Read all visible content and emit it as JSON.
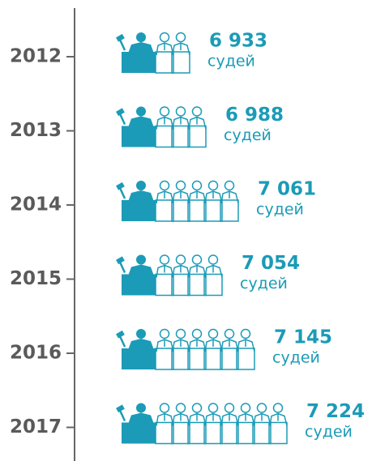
{
  "chart_data": {
    "type": "pictogram",
    "categories": [
      "2012",
      "2013",
      "2014",
      "2015",
      "2016",
      "2017"
    ],
    "values": [
      6933,
      6988,
      7061,
      7054,
      7145,
      7224
    ],
    "value_labels": [
      "6 933",
      "6 988",
      "7 061",
      "7 054",
      "7 145",
      "7 224"
    ],
    "unit": "судей",
    "color": "#1b9bb7"
  }
}
